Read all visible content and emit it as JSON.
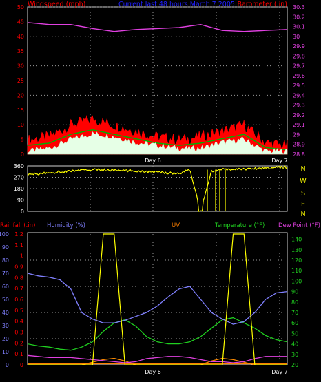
{
  "top": {
    "title": "Current last 48 hours March 7 2005",
    "left_label": "Windspeed (mph)",
    "right_label": "Barometer (.in)",
    "day_labels": [
      "Day 6",
      "Day 7"
    ],
    "wind_ticks": [
      "0",
      "5",
      "10",
      "15",
      "20",
      "25",
      "30",
      "35",
      "40",
      "45",
      "50"
    ],
    "baro_ticks": [
      "28.8",
      "28.9",
      "29",
      "29.1",
      "29.2",
      "29.3",
      "29.4",
      "29.5",
      "29.6",
      "29.7",
      "29.8",
      "29.9",
      "30",
      "30.1",
      "30.2",
      "30.3"
    ],
    "colors": {
      "wind_gust": "#ff0000",
      "wind_avg": "#00b000",
      "wind_low": "#e6ffe6",
      "barometer": "#e040e0",
      "title": "#2020ff",
      "label": "#ff0000"
    }
  },
  "mid": {
    "dir_ticks": [
      "0",
      "90",
      "180",
      "270",
      "360"
    ],
    "compass": [
      "N",
      "W",
      "S",
      "E",
      "N"
    ],
    "colors": {
      "direction": "#ffff00"
    }
  },
  "bottom": {
    "rain_label": "Rainfall (.in)",
    "hum_label": "Humidity (%)",
    "uv_label": "UV",
    "temp_label": "Temperature (°F)",
    "dew_label": "Dew Point (°F)",
    "day_labels": [
      "Day 6",
      "Day 7"
    ],
    "hum_ticks": [
      "0",
      "10",
      "20",
      "30",
      "40",
      "50",
      "60",
      "70",
      "80",
      "90",
      "100"
    ],
    "rain_ticks": [
      "0",
      "0.1",
      "0.2",
      "0.3",
      "0.4",
      "0.5",
      "0.6",
      "0.7",
      "0.8",
      "0.9",
      "1",
      "1.1",
      "1.2"
    ],
    "temp_ticks": [
      "20",
      "30",
      "40",
      "50",
      "60",
      "70",
      "80",
      "90",
      "100",
      "110",
      "120",
      "130",
      "140"
    ],
    "colors": {
      "humidity": "#8080ff",
      "temperature": "#20d020",
      "dew": "#e040e0",
      "uv": "#ffff00",
      "rain": "#ff8000",
      "solar": "#ff8c00"
    }
  },
  "chart_data": [
    {
      "type": "line",
      "title": "Current last 48 hours March 7 2005",
      "xlabel": "",
      "ylabel": "Windspeed (mph)",
      "y2label": "Barometer (.in)",
      "x_day_labels": [
        "Day 6",
        "Day 7"
      ],
      "ylim": [
        0,
        50
      ],
      "y2lim": [
        28.8,
        30.3
      ],
      "x": [
        0,
        4,
        8,
        12,
        16,
        20,
        24,
        28,
        32,
        36,
        40,
        44,
        48
      ],
      "series": [
        {
          "axis": "right",
          "values": [
            30.14,
            30.12,
            30.12,
            30.08,
            30.05,
            30.07,
            30.08,
            30.09,
            30.12,
            30.06,
            30.05,
            30.06,
            30.07
          ]
        },
        {
          "axis": "left",
          "values": [
            4,
            5,
            9,
            11,
            9,
            7,
            5,
            4,
            5,
            7,
            9,
            3,
            2
          ]
        },
        {
          "axis": "left",
          "values": [
            1,
            2,
            5,
            7,
            6,
            4,
            3,
            2,
            2,
            4,
            5,
            1,
            1
          ]
        }
      ]
    },
    {
      "type": "line",
      "ylabel": "",
      "ylim": [
        0,
        360
      ],
      "x": [
        0,
        4,
        8,
        12,
        16,
        20,
        24,
        28,
        30,
        32,
        34,
        36,
        40,
        44,
        48
      ],
      "series": [
        {
          "values": [
            290,
            305,
            320,
            330,
            325,
            320,
            310,
            300,
            330,
            0,
            320,
            330,
            335,
            345,
            350
          ]
        }
      ]
    },
    {
      "type": "line",
      "x_day_labels": [
        "Day 6",
        "Day 7"
      ],
      "ylim": [
        0,
        100
      ],
      "y2lim": [
        20,
        145
      ],
      "x": [
        0,
        2,
        4,
        6,
        8,
        10,
        12,
        14,
        16,
        18,
        20,
        22,
        24,
        26,
        28,
        30,
        32,
        34,
        36,
        38,
        40,
        42,
        44,
        46,
        48
      ],
      "series": [
        {
          "axis": "left",
          "values": [
            70,
            68,
            67,
            65,
            58,
            40,
            35,
            32,
            32,
            34,
            37,
            40,
            45,
            52,
            58,
            60,
            50,
            40,
            35,
            31,
            33,
            40,
            50,
            55,
            56
          ]
        },
        {
          "axis": "right",
          "values": [
            40,
            38,
            37,
            35,
            34,
            37,
            42,
            52,
            60,
            63,
            57,
            47,
            42,
            40,
            40,
            42,
            47,
            55,
            63,
            65,
            60,
            55,
            48,
            44,
            42
          ]
        },
        {
          "axis": "right",
          "values": [
            29,
            28,
            27,
            27,
            27,
            26,
            25,
            24,
            23,
            22,
            23,
            26,
            27,
            28,
            28,
            27,
            25,
            23,
            23,
            22,
            23,
            26,
            28,
            28,
            28
          ]
        },
        {
          "axis": "left",
          "values": [
            0,
            0,
            0,
            0,
            0,
            0,
            0,
            100,
            100,
            0,
            0,
            0,
            0,
            0,
            0,
            0,
            0,
            0,
            0,
            100,
            100,
            0,
            0,
            0,
            0
          ]
        },
        {
          "axis": "left",
          "values": [
            0,
            0,
            0,
            0,
            0,
            0,
            2,
            4,
            5,
            3,
            0,
            0,
            0,
            0,
            0,
            0,
            0,
            3,
            5,
            4,
            2,
            0,
            0,
            0,
            0
          ]
        }
      ]
    }
  ]
}
